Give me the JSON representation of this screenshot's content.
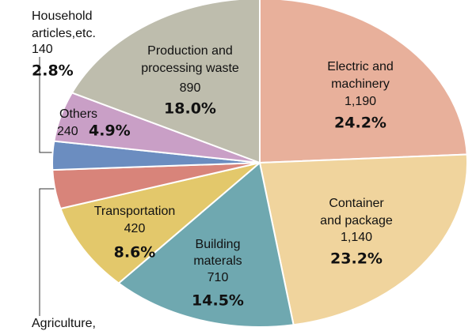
{
  "chart_data": {
    "type": "pie",
    "categories": [
      "Electric and machinery",
      "Container and package",
      "Building materals",
      "Transportation",
      "Agriculture,",
      "Household articles,etc.",
      "Others",
      "Production and processing waste"
    ],
    "values": [
      24.2,
      23.2,
      14.5,
      8.6,
      3.8,
      2.8,
      4.9,
      18.0
    ],
    "value_labels": [
      "24.2%",
      "23.2%",
      "14.5%",
      "8.6%",
      null,
      "2.8%",
      "4.9%",
      "18.0%"
    ],
    "counts": [
      1190,
      1140,
      710,
      420,
      null,
      140,
      240,
      890
    ],
    "count_labels": [
      "1,190",
      "1,140",
      "710",
      "420",
      null,
      "140",
      "240",
      "890"
    ],
    "colors": [
      "#e8b09b",
      "#f0d49d",
      "#6fa8b0",
      "#e3c86b",
      "#d8847a",
      "#6b8dc0",
      "#c99fc6",
      "#bebdad"
    ]
  }
}
